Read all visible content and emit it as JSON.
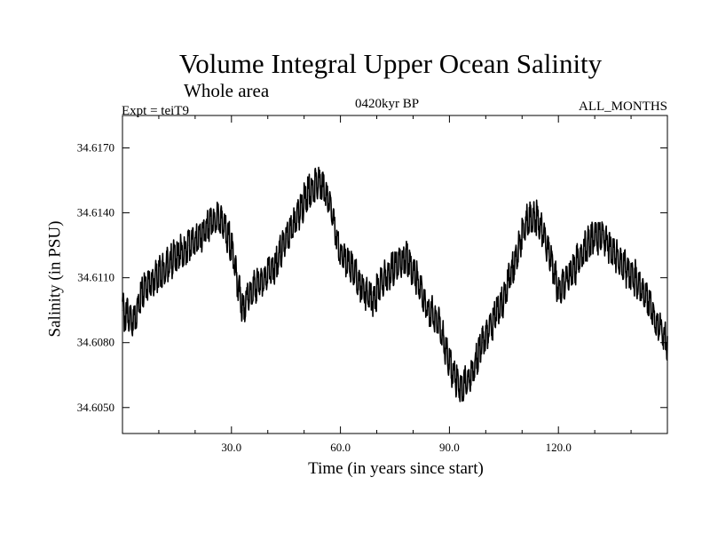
{
  "chart_data": {
    "type": "line",
    "title": "Volume Integral Upper Ocean Salinity",
    "subtitle": "Whole area",
    "experiment": "Expt = teiT9",
    "period": "0420kyr BP",
    "months": "ALL_MONTHS",
    "xlabel": "Time (in years since start)",
    "ylabel": "Salinity (in PSU)",
    "xlim": [
      0,
      150
    ],
    "ylim": [
      34.6038,
      34.6185
    ],
    "xticks": [
      30,
      60,
      90,
      120
    ],
    "xtick_labels": [
      "30.0",
      "60.0",
      "90.0",
      "120.0"
    ],
    "yticks": [
      34.605,
      34.608,
      34.611,
      34.614,
      34.617
    ],
    "ytick_labels": [
      "34.6050",
      "34.6080",
      "34.6110",
      "34.6140",
      "34.6170"
    ],
    "grid": false,
    "series": [
      {
        "name": "Salinity",
        "color": "#000000",
        "x": [
          0,
          3,
          6,
          9,
          12,
          15,
          18,
          21,
          24,
          27,
          30,
          33,
          36,
          39,
          42,
          45,
          48,
          51,
          54,
          57,
          60,
          63,
          66,
          69,
          72,
          75,
          78,
          81,
          84,
          87,
          90,
          93,
          96,
          99,
          102,
          105,
          108,
          111,
          114,
          117,
          120,
          123,
          126,
          129,
          132,
          135,
          138,
          141,
          144,
          147,
          150
        ],
        "y": [
          34.6095,
          34.609,
          34.6105,
          34.611,
          34.6115,
          34.612,
          34.6125,
          34.6128,
          34.6135,
          34.6138,
          34.6125,
          34.6095,
          34.6105,
          34.611,
          34.6115,
          34.6128,
          34.6138,
          34.6148,
          34.6155,
          34.6145,
          34.612,
          34.6115,
          34.6105,
          34.61,
          34.611,
          34.6115,
          34.612,
          34.611,
          34.6095,
          34.609,
          34.607,
          34.6058,
          34.6065,
          34.608,
          34.609,
          34.61,
          34.6118,
          34.6135,
          34.6138,
          34.6125,
          34.6105,
          34.611,
          34.612,
          34.6128,
          34.613,
          34.6122,
          34.6115,
          34.611,
          34.6102,
          34.609,
          34.608
        ]
      }
    ]
  }
}
